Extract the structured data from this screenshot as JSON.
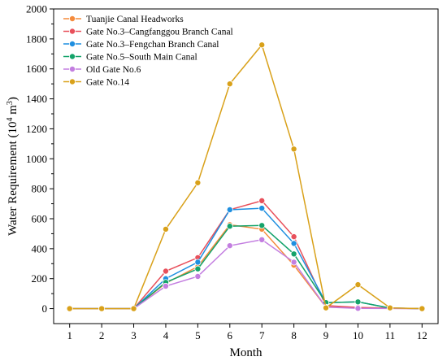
{
  "chart_data": {
    "type": "line",
    "xlabel": "Month",
    "ylabel_main": "Water Requirement (10",
    "ylabel_sup": "4",
    "ylabel_unit": " m",
    "ylabel_sup2": "3",
    "ylabel_close": ")",
    "xlim": [
      0.5,
      12.5
    ],
    "ylim": [
      -100,
      2000
    ],
    "x": [
      1,
      2,
      3,
      4,
      5,
      6,
      7,
      8,
      9,
      10,
      11,
      12
    ],
    "x_tick_labels": [
      "1",
      "2",
      "3",
      "4",
      "5",
      "6",
      "7",
      "8",
      "9",
      "10",
      "11",
      "12"
    ],
    "y_ticks": [
      0,
      200,
      400,
      600,
      800,
      1000,
      1200,
      1400,
      1600,
      1800,
      2000
    ],
    "y_tick_labels": [
      "0",
      "200",
      "400",
      "600",
      "800",
      "1000",
      "1200",
      "1400",
      "1600",
      "1800",
      "2000"
    ],
    "legend_position": "top-left",
    "grid": false,
    "series": [
      {
        "name": "Tuanjie Canal Headworks",
        "color": "#f58b3c",
        "values": [
          0,
          0,
          0,
          170,
          280,
          560,
          530,
          290,
          10,
          5,
          2,
          0
        ]
      },
      {
        "name": "Gate No.3–Cangfanggou Branch Canal",
        "color": "#e8505b",
        "values": [
          0,
          0,
          0,
          250,
          340,
          660,
          720,
          480,
          20,
          8,
          3,
          0
        ]
      },
      {
        "name": "Gate No.3–Fengchan Branch Canal",
        "color": "#1f8fe0",
        "values": [
          0,
          0,
          0,
          200,
          310,
          660,
          670,
          435,
          40,
          45,
          4,
          0
        ]
      },
      {
        "name": "Gate No.5–South Main Canal",
        "color": "#14a36a",
        "values": [
          0,
          0,
          0,
          175,
          265,
          550,
          555,
          365,
          40,
          45,
          3,
          0
        ]
      },
      {
        "name": "Old Gate No.6",
        "color": "#c37ee0",
        "values": [
          0,
          0,
          0,
          150,
          215,
          420,
          460,
          310,
          10,
          2,
          1,
          0
        ]
      },
      {
        "name": "Gate No.14",
        "color": "#d9a11a",
        "values": [
          0,
          0,
          0,
          530,
          840,
          1500,
          1760,
          1065,
          5,
          160,
          5,
          0
        ]
      }
    ]
  }
}
